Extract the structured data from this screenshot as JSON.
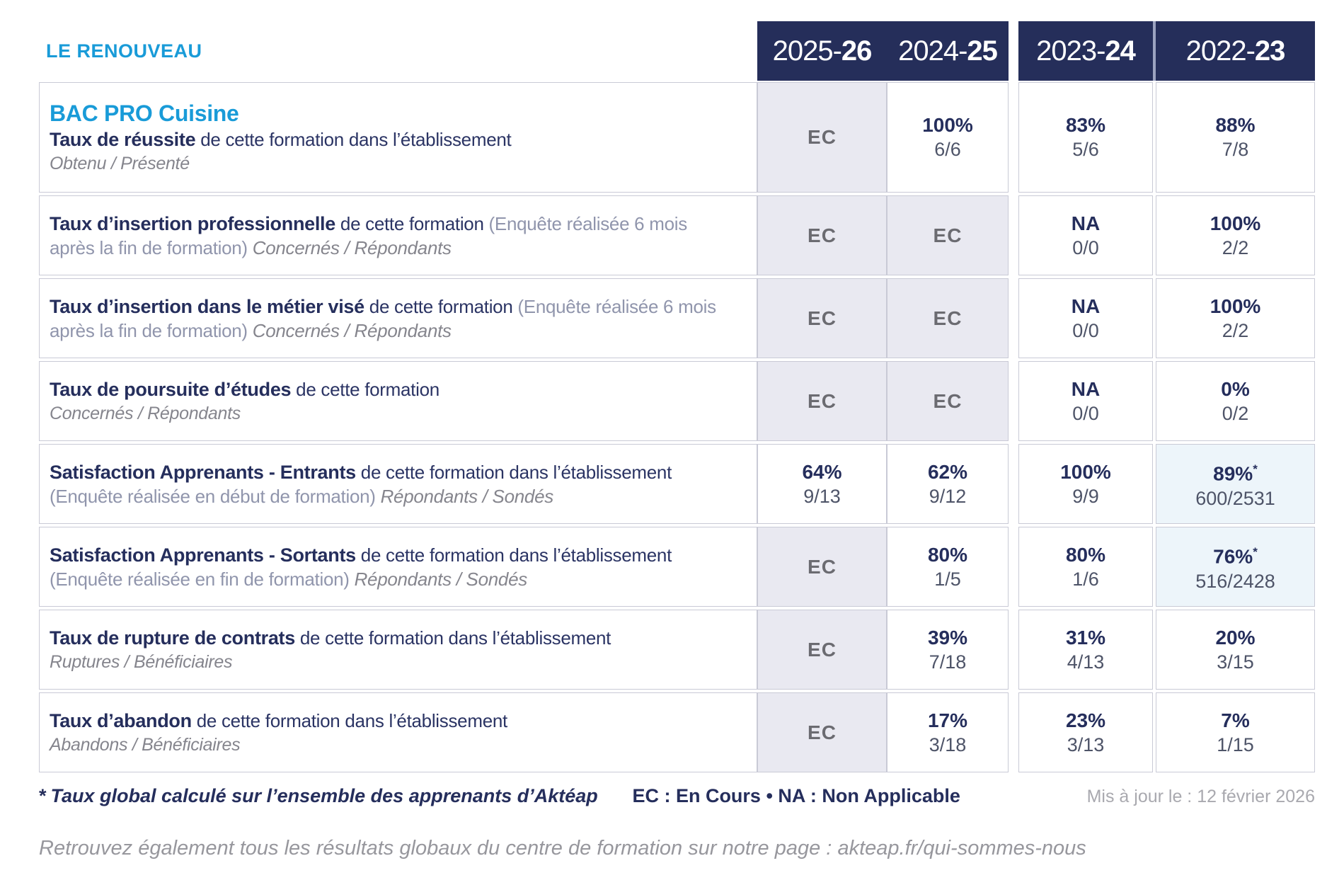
{
  "school_name": "LE RENOUVEAU",
  "course_title": "BAC PRO Cuisine",
  "colors": {
    "header_navy": "#252e5a",
    "brand_blue": "#199bd8",
    "label_navy": "#252e5c",
    "ec_gray": "#6b6b71",
    "ec_cell_bg": "#e9e9f1",
    "star_cell_bg": "#edf5fa",
    "muted_gray": "#97979d"
  },
  "years": [
    {
      "pre": "2025-",
      "suf": "26"
    },
    {
      "pre": "2024-",
      "suf": "25"
    },
    {
      "pre": "2023-",
      "suf": "24"
    },
    {
      "pre": "2022-",
      "suf": "23"
    }
  ],
  "rows": [
    {
      "bold": "Taux de réussite",
      "mid": " de cette formation dans l’établissement",
      "paren": "",
      "tail": "",
      "sub": "Obtenu / Présenté",
      "cells": [
        {
          "text": "EC"
        },
        {
          "pct": "100%",
          "frac": "6/6"
        },
        {
          "pct": "83%",
          "frac": "5/6"
        },
        {
          "pct": "88%",
          "frac": "7/8"
        }
      ]
    },
    {
      "bold": "Taux d’insertion professionnelle",
      "mid": " de cette formation ",
      "paren": "(Enquête réalisée 6 mois après la fin de formation)",
      "tail": " Concernés / Répondants",
      "sub": "",
      "cells": [
        {
          "text": "EC"
        },
        {
          "text": "EC"
        },
        {
          "pct": "NA",
          "frac": "0/0"
        },
        {
          "pct": "100%",
          "frac": "2/2"
        }
      ]
    },
    {
      "bold": "Taux d’insertion dans le métier visé",
      "mid": " de cette formation ",
      "paren": "(Enquête réalisée 6 mois après la fin de formation)",
      "tail": " Concernés / Répondants",
      "sub": "",
      "cells": [
        {
          "text": "EC"
        },
        {
          "text": "EC"
        },
        {
          "pct": "NA",
          "frac": "0/0"
        },
        {
          "pct": "100%",
          "frac": "2/2"
        }
      ]
    },
    {
      "bold": "Taux de poursuite d’études",
      "mid": " de cette formation",
      "paren": "",
      "tail": "",
      "sub": "Concernés / Répondants",
      "cells": [
        {
          "text": "EC"
        },
        {
          "text": "EC"
        },
        {
          "pct": "NA",
          "frac": "0/0"
        },
        {
          "pct": "0%",
          "frac": "0/2"
        }
      ]
    },
    {
      "bold": "Satisfaction Apprenants - Entrants",
      "mid": " de cette formation dans l’établissement ",
      "paren": "(Enquête réalisée en début de formation)",
      "tail": " Répondants / Sondés",
      "sub": "",
      "cells": [
        {
          "pct": "64%",
          "frac": "9/13"
        },
        {
          "pct": "62%",
          "frac": "9/12"
        },
        {
          "pct": "100%",
          "frac": "9/9"
        },
        {
          "pct": "89%",
          "star": "*",
          "frac": "600/2531"
        }
      ]
    },
    {
      "bold": "Satisfaction Apprenants - Sortants",
      "mid": " de cette formation dans l’établissement ",
      "paren": "(Enquête réalisée en fin de formation)",
      "tail": " Répondants / Sondés",
      "sub": "",
      "cells": [
        {
          "text": "EC"
        },
        {
          "pct": "80%",
          "frac": "1/5"
        },
        {
          "pct": "80%",
          "frac": "1/6"
        },
        {
          "pct": "76%",
          "star": "*",
          "frac": "516/2428"
        }
      ]
    },
    {
      "bold": "Taux de rupture de contrats",
      "mid": " de cette formation dans l’établissement",
      "paren": "",
      "tail": "",
      "sub": "Ruptures / Bénéficiaires",
      "cells": [
        {
          "text": "EC"
        },
        {
          "pct": "39%",
          "frac": "7/18"
        },
        {
          "pct": "31%",
          "frac": "4/13"
        },
        {
          "pct": "20%",
          "frac": "3/15"
        }
      ]
    },
    {
      "bold": "Taux d’abandon",
      "mid": " de cette formation dans l’établissement",
      "paren": "",
      "tail": "",
      "sub": "Abandons / Bénéficiaires",
      "cells": [
        {
          "text": "EC"
        },
        {
          "pct": "17%",
          "frac": "3/18"
        },
        {
          "pct": "23%",
          "frac": "3/13"
        },
        {
          "pct": "7%",
          "frac": "1/15"
        }
      ]
    }
  ],
  "footer": {
    "footnote_star": "*",
    "footnote_text": "Taux global calculé sur l’ensemble des apprenants d’Aktéap",
    "legend": "EC : En Cours  •  NA : Non Applicable",
    "updated": "Mis à jour le : 12 février 2026",
    "bottom_text": "Retrouvez également tous les résultats globaux du centre de formation sur notre page : ",
    "bottom_link": "akteap.fr/qui-sommes-nous"
  }
}
